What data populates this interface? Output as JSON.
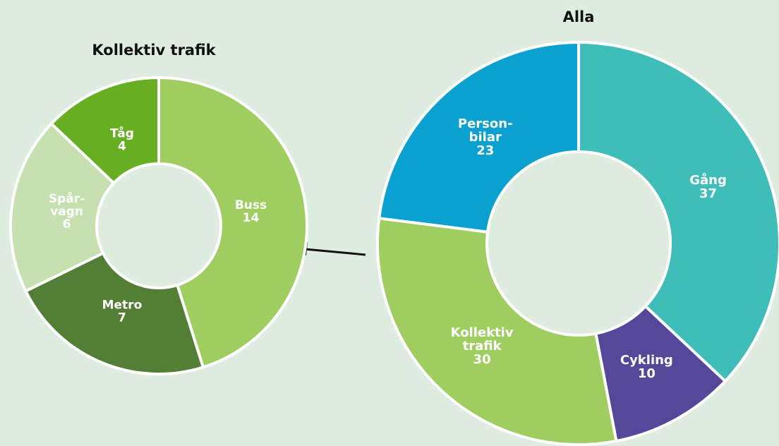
{
  "chart_data": [
    {
      "type": "donut",
      "title": "Kollektiv trafik",
      "categories": [
        [
          "Buss"
        ],
        [
          "Metro"
        ],
        [
          "Spår-",
          "vagn"
        ],
        [
          "Tåg"
        ]
      ],
      "values": [
        14,
        7,
        6,
        4
      ],
      "colors": [
        "#a0cd60",
        "#527f35",
        "#c6e0b0",
        "#68ae22"
      ]
    },
    {
      "type": "donut",
      "title": "Alla",
      "categories": [
        [
          "Gång"
        ],
        [
          "Cykling"
        ],
        [
          "Kollektiv",
          "trafik"
        ],
        [
          "Person-",
          "bilar"
        ]
      ],
      "values": [
        37,
        10,
        30,
        23
      ],
      "colors": [
        "#3ebdb9",
        "#55479a",
        "#a0cd60",
        "#0aa0d0"
      ]
    }
  ]
}
